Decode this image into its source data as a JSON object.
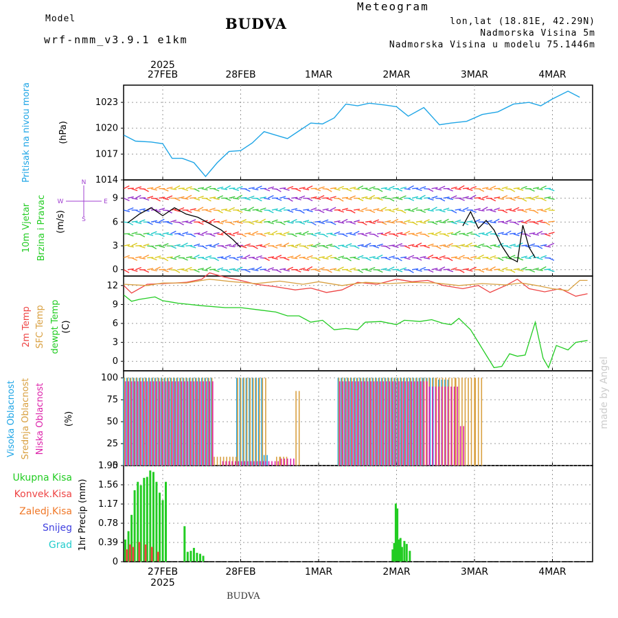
{
  "header": {
    "model_label": "Model",
    "model_name": "wrf-nmm_v3.9.1 e1km",
    "title": "BUDVA",
    "meteogram_label": "Meteogram",
    "lonlat": "lon,lat (18.81E, 42.29N)",
    "altitude": "Nadmorska Visina 5m",
    "model_altitude": "Nadmorska Visina u modelu 75.1446m"
  },
  "footer": {
    "station": "BUDVA"
  },
  "watermark": "made by Angel",
  "colors": {
    "pressure": "#1ea5e6",
    "temp2m": "#ee4444",
    "sfc_temp": "#d9a040",
    "dewpt": "#22cc22",
    "high_cloud": "#1ea5e6",
    "mid_cloud": "#d9a040",
    "low_cloud": "#dd22aa",
    "total_precip": "#22cc22",
    "conv_precip": "#ee4444",
    "frozen_precip": "#f07828",
    "snow": "#4040e0",
    "graupel": "#22cccc",
    "model_name": "#a040d0",
    "meteogram": "#e8b860"
  },
  "axes": {
    "top_year": "2025",
    "bottom_year": "2025",
    "date_ticks": [
      "27FEB",
      "28FEB",
      "1MAR",
      "2MAR",
      "3MAR",
      "4MAR"
    ]
  },
  "chart_data": [
    {
      "type": "line",
      "panel": "pressure",
      "ylabel_1": "Pritisak na nivou mora",
      "ylabel_2": "(hPa)",
      "yticks": [
        "1014",
        "1017",
        "1020",
        "1023"
      ],
      "ylim": [
        1014,
        1025
      ],
      "x_unit": "days since 27FEB 00Z",
      "series": [
        {
          "values": [
            [
              -0.5,
              1019.2
            ],
            [
              -0.35,
              1018.5
            ],
            [
              -0.15,
              1018.4
            ],
            [
              0,
              1018.2
            ],
            [
              0.12,
              1016.5
            ],
            [
              0.25,
              1016.5
            ],
            [
              0.4,
              1016.0
            ],
            [
              0.55,
              1014.4
            ],
            [
              0.7,
              1016.0
            ],
            [
              0.85,
              1017.3
            ],
            [
              1.0,
              1017.4
            ],
            [
              1.15,
              1018.3
            ],
            [
              1.3,
              1019.6
            ],
            [
              1.45,
              1019.2
            ],
            [
              1.6,
              1018.8
            ],
            [
              1.75,
              1019.7
            ],
            [
              1.9,
              1020.6
            ],
            [
              2.05,
              1020.5
            ],
            [
              2.2,
              1021.2
            ],
            [
              2.35,
              1022.8
            ],
            [
              2.5,
              1022.6
            ],
            [
              2.65,
              1022.9
            ],
            [
              2.85,
              1022.7
            ],
            [
              3.0,
              1022.5
            ],
            [
              3.15,
              1021.4
            ],
            [
              3.35,
              1022.4
            ],
            [
              3.55,
              1020.4
            ],
            [
              3.7,
              1020.6
            ],
            [
              3.9,
              1020.8
            ],
            [
              4.1,
              1021.6
            ],
            [
              4.3,
              1021.9
            ],
            [
              4.5,
              1022.8
            ],
            [
              4.7,
              1023.0
            ],
            [
              4.85,
              1022.6
            ],
            [
              5.0,
              1023.4
            ],
            [
              5.2,
              1024.3
            ],
            [
              5.35,
              1023.6
            ]
          ]
        }
      ]
    },
    {
      "type": "line",
      "panel": "wind",
      "ylabel_1": "10m Vjetar",
      "ylabel_2": "Brzina i Pravac",
      "ylabel_3": "(m/s)",
      "compass": [
        "N",
        "W",
        "E",
        "S"
      ],
      "yticks": [
        "0",
        "3",
        "6",
        "9"
      ],
      "ylim": [
        -0.8,
        11.3
      ],
      "x_unit": "days since 27FEB 00Z",
      "series": [
        {
          "values": [
            [
              -0.45,
              5.9
            ],
            [
              -0.3,
              7.0
            ],
            [
              -0.15,
              7.8
            ],
            [
              0.0,
              6.8
            ],
            [
              0.15,
              7.8
            ],
            [
              0.3,
              7.0
            ],
            [
              0.45,
              6.6
            ],
            [
              0.6,
              5.8
            ],
            [
              0.75,
              5.0
            ],
            [
              0.9,
              3.8
            ],
            [
              1.0,
              2.8
            ]
          ]
        },
        {
          "values": [
            [
              3.85,
              5.5
            ],
            [
              3.95,
              7.3
            ],
            [
              4.05,
              5.2
            ],
            [
              4.15,
              6.2
            ],
            [
              4.25,
              5.0
            ],
            [
              4.35,
              3.0
            ],
            [
              4.45,
              1.5
            ],
            [
              4.55,
              1.0
            ],
            [
              4.62,
              5.6
            ],
            [
              4.7,
              2.8
            ],
            [
              4.78,
              1.5
            ]
          ]
        }
      ]
    },
    {
      "type": "line",
      "panel": "temperature",
      "ylabel_1": "2m Temp",
      "ylabel_2": "SFC Temp",
      "ylabel_3": "dewpt Temp",
      "ylabel_4": "(C)",
      "yticks": [
        "0",
        "3",
        "6",
        "9",
        "12"
      ],
      "ylim": [
        -1.5,
        13.5
      ],
      "x_unit": "days since 27FEB 00Z",
      "series": [
        {
          "name": "2m Temp",
          "values": [
            [
              -0.5,
              12.0
            ],
            [
              -0.4,
              10.8
            ],
            [
              -0.2,
              12.2
            ],
            [
              0.0,
              12.3
            ],
            [
              0.3,
              12.5
            ],
            [
              0.5,
              13.0
            ],
            [
              0.6,
              14.0
            ],
            [
              0.8,
              13.3
            ],
            [
              1.0,
              12.8
            ],
            [
              1.2,
              12.2
            ],
            [
              1.45,
              11.8
            ],
            [
              1.7,
              11.3
            ],
            [
              1.9,
              11.6
            ],
            [
              2.1,
              10.9
            ],
            [
              2.3,
              11.3
            ],
            [
              2.5,
              12.5
            ],
            [
              2.75,
              12.2
            ],
            [
              3.0,
              13.0
            ],
            [
              3.2,
              12.6
            ],
            [
              3.4,
              12.8
            ],
            [
              3.6,
              12.0
            ],
            [
              3.85,
              11.5
            ],
            [
              4.05,
              12.0
            ],
            [
              4.2,
              10.9
            ],
            [
              4.4,
              12.0
            ],
            [
              4.55,
              13.0
            ],
            [
              4.7,
              11.5
            ],
            [
              4.9,
              11.0
            ],
            [
              5.1,
              11.5
            ],
            [
              5.3,
              10.3
            ],
            [
              5.45,
              10.7
            ]
          ]
        },
        {
          "name": "SFC Temp",
          "values": [
            [
              -0.5,
              12.2
            ],
            [
              -0.2,
              12.0
            ],
            [
              0.0,
              12.4
            ],
            [
              0.3,
              12.4
            ],
            [
              0.6,
              13.0
            ],
            [
              0.9,
              12.6
            ],
            [
              1.2,
              12.3
            ],
            [
              1.5,
              12.7
            ],
            [
              1.8,
              12.2
            ],
            [
              2.0,
              12.6
            ],
            [
              2.3,
              12.0
            ],
            [
              2.6,
              12.5
            ],
            [
              2.9,
              12.3
            ],
            [
              3.2,
              12.5
            ],
            [
              3.5,
              12.4
            ],
            [
              3.8,
              12.0
            ],
            [
              4.1,
              12.3
            ],
            [
              4.4,
              12.1
            ],
            [
              4.6,
              12.4
            ],
            [
              4.8,
              12.0
            ],
            [
              5.0,
              11.5
            ],
            [
              5.2,
              11.2
            ],
            [
              5.35,
              12.8
            ],
            [
              5.45,
              12.8
            ]
          ]
        },
        {
          "name": "dewpt Temp",
          "values": [
            [
              -0.5,
              10.5
            ],
            [
              -0.4,
              9.5
            ],
            [
              -0.3,
              9.8
            ],
            [
              -0.1,
              10.2
            ],
            [
              0.0,
              9.6
            ],
            [
              0.2,
              9.2
            ],
            [
              0.5,
              8.8
            ],
            [
              0.8,
              8.5
            ],
            [
              1.0,
              8.5
            ],
            [
              1.2,
              8.2
            ],
            [
              1.45,
              7.8
            ],
            [
              1.6,
              7.2
            ],
            [
              1.75,
              7.2
            ],
            [
              1.9,
              6.2
            ],
            [
              2.05,
              6.5
            ],
            [
              2.2,
              5.0
            ],
            [
              2.35,
              5.2
            ],
            [
              2.5,
              5.0
            ],
            [
              2.6,
              6.2
            ],
            [
              2.8,
              6.3
            ],
            [
              3.0,
              5.8
            ],
            [
              3.1,
              6.5
            ],
            [
              3.3,
              6.3
            ],
            [
              3.45,
              6.6
            ],
            [
              3.6,
              6.0
            ],
            [
              3.7,
              5.8
            ],
            [
              3.8,
              6.8
            ],
            [
              3.95,
              5.0
            ],
            [
              4.05,
              3.0
            ],
            [
              4.15,
              1.0
            ],
            [
              4.25,
              -1.0
            ],
            [
              4.35,
              -0.8
            ],
            [
              4.45,
              1.2
            ],
            [
              4.55,
              0.8
            ],
            [
              4.65,
              1.0
            ],
            [
              4.78,
              6.2
            ],
            [
              4.88,
              0.5
            ],
            [
              4.95,
              -1.0
            ],
            [
              5.05,
              2.5
            ],
            [
              5.2,
              1.8
            ],
            [
              5.3,
              3.0
            ],
            [
              5.45,
              3.3
            ]
          ]
        }
      ]
    },
    {
      "type": "bar",
      "panel": "cloud",
      "ylabel_1": "Visoka Oblacnost",
      "ylabel_2": "Srednja Oblacnost",
      "ylabel_3": "Niska Oblacnost",
      "ylabel_4": "(%)",
      "yticks": [
        "0",
        "25",
        "50",
        "75",
        "100"
      ],
      "ylim": [
        0,
        108
      ],
      "x_unit": "days since 27FEB 00Z",
      "series": [
        {
          "name": "Visoka Oblacnost",
          "intervals": [
            [
              -0.5,
              0.65,
              100
            ],
            [
              0.65,
              0.95,
              0
            ],
            [
              0.95,
              1.3,
              100
            ],
            [
              1.3,
              1.35,
              12
            ],
            [
              1.35,
              1.9,
              0
            ],
            [
              2.25,
              3.35,
              100
            ],
            [
              3.35,
              3.5,
              100
            ],
            [
              3.5,
              3.7,
              98
            ]
          ]
        },
        {
          "name": "Srednja Oblacnost",
          "intervals": [
            [
              -0.5,
              0.65,
              100
            ],
            [
              0.65,
              0.95,
              10
            ],
            [
              0.95,
              1.32,
              100
            ],
            [
              1.45,
              1.5,
              10
            ],
            [
              1.5,
              1.6,
              10
            ],
            [
              1.7,
              1.75,
              85
            ],
            [
              2.25,
              3.5,
              100
            ],
            [
              3.5,
              3.75,
              100
            ],
            [
              3.75,
              4.0,
              100
            ],
            [
              4.0,
              4.1,
              100
            ]
          ]
        },
        {
          "name": "Niska Oblacnost",
          "intervals": [
            [
              -0.5,
              0.65,
              96
            ],
            [
              0.75,
              1.3,
              5
            ],
            [
              1.3,
              1.5,
              5
            ],
            [
              1.5,
              1.7,
              8
            ],
            [
              2.25,
              3.4,
              96
            ],
            [
              3.4,
              3.8,
              90
            ],
            [
              3.8,
              3.85,
              45
            ],
            [
              3.85,
              5.45,
              0
            ]
          ]
        }
      ]
    },
    {
      "type": "bar",
      "panel": "precipitation",
      "ylabel_1": "Ukupna Kisa",
      "ylabel_2": "Konvek.Kisa",
      "ylabel_3": "Zaledj.Kisa",
      "ylabel_4": "Snijeg",
      "ylabel_5": "Grad",
      "ylabel_6": "1hr Precip (mm)",
      "yticks": [
        "0",
        "0.39",
        "0.78",
        "1.17",
        "1.56",
        "1.95"
      ],
      "ylim": [
        0,
        1.95
      ],
      "x_unit": "days since 27FEB 00Z",
      "series": [
        {
          "name": "Ukupna Kisa",
          "values": [
            [
              -0.48,
              0.45
            ],
            [
              -0.44,
              0.62
            ],
            [
              -0.4,
              0.95
            ],
            [
              -0.36,
              1.45
            ],
            [
              -0.32,
              1.62
            ],
            [
              -0.28,
              1.55
            ],
            [
              -0.24,
              1.7
            ],
            [
              -0.2,
              1.72
            ],
            [
              -0.16,
              1.85
            ],
            [
              -0.12,
              1.82
            ],
            [
              -0.08,
              1.62
            ],
            [
              -0.04,
              1.4
            ],
            [
              0.0,
              1.25
            ],
            [
              0.04,
              1.62
            ],
            [
              0.28,
              0.72
            ],
            [
              0.32,
              0.2
            ],
            [
              0.36,
              0.22
            ],
            [
              0.4,
              0.28
            ],
            [
              0.44,
              0.18
            ],
            [
              0.48,
              0.16
            ],
            [
              0.52,
              0.12
            ],
            [
              2.95,
              0.25
            ],
            [
              2.97,
              0.38
            ],
            [
              2.99,
              1.18
            ],
            [
              3.01,
              1.08
            ],
            [
              3.03,
              0.45
            ],
            [
              3.05,
              0.48
            ],
            [
              3.07,
              0.3
            ],
            [
              3.1,
              0.42
            ],
            [
              3.13,
              0.36
            ],
            [
              3.17,
              0.22
            ]
          ]
        },
        {
          "name": "Konvek.Kisa",
          "values": [
            [
              -0.46,
              0.25
            ],
            [
              -0.42,
              0.35
            ],
            [
              -0.38,
              0.3
            ],
            [
              -0.3,
              0.4
            ],
            [
              -0.22,
              0.35
            ],
            [
              -0.14,
              0.3
            ],
            [
              -0.06,
              0.2
            ]
          ]
        }
      ]
    }
  ]
}
